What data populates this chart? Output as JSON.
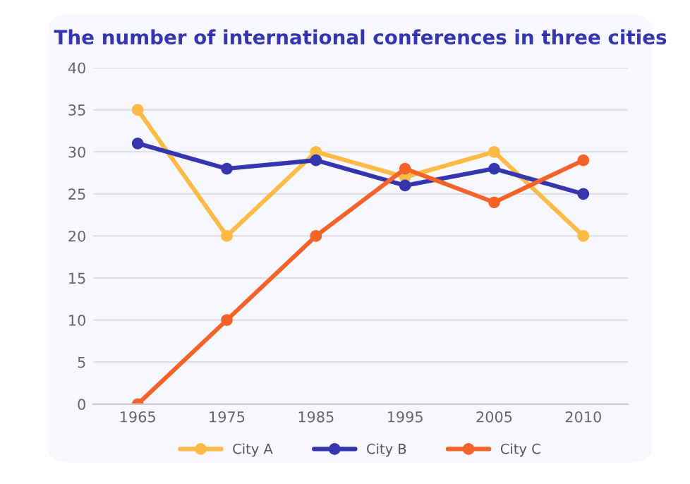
{
  "chart_data": {
    "type": "line",
    "title": "The number of international conferences in three cities",
    "categories": [
      "1965",
      "1975",
      "1985",
      "1995",
      "2005",
      "2010"
    ],
    "series": [
      {
        "name": "City A",
        "color": "#fbbb46",
        "values": [
          35,
          20,
          30,
          27,
          30,
          20
        ]
      },
      {
        "name": "City B",
        "color": "#3535b0",
        "values": [
          31,
          28,
          29,
          26,
          28,
          25
        ]
      },
      {
        "name": "City C",
        "color": "#f4632a",
        "values": [
          0,
          10,
          20,
          28,
          24,
          29
        ]
      }
    ],
    "ylim": [
      0,
      40
    ],
    "yticks": [
      0,
      5,
      10,
      15,
      20,
      25,
      30,
      35,
      40
    ],
    "grid": "y",
    "legend": "bottom",
    "marker": "circle",
    "line_style": "solid"
  }
}
